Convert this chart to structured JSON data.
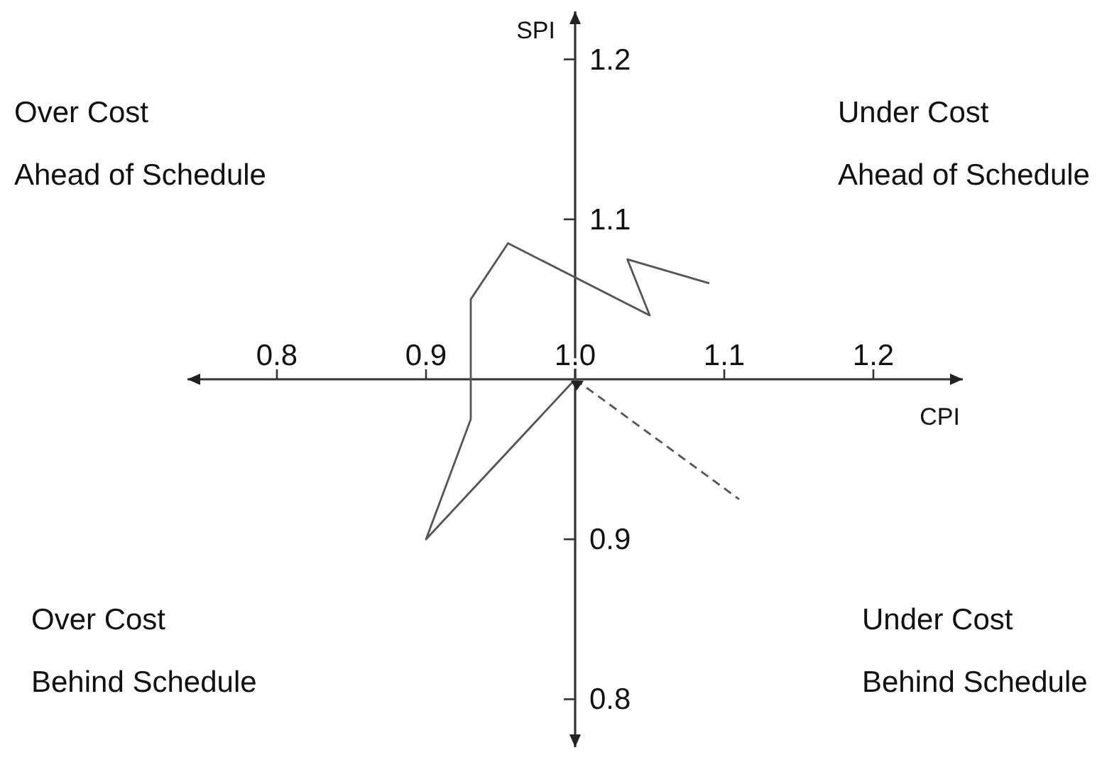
{
  "chart_data": {
    "type": "line",
    "xlabel": "CPI",
    "ylabel": "SPI",
    "annotations": [
      "Over Cost\nAhead of Schedule",
      "Under Cost\nAhead of Schedule",
      "Over Cost\nBehind Schedule",
      "Under Cost\nBehind Schedule"
    ],
    "series": [
      {
        "color": "#555555",
        "x": [
          1.09,
          1.035,
          1.05,
          0.955,
          0.93,
          0.93,
          0.9,
          1.0
        ],
        "values": [
          1.06,
          1.075,
          1.04,
          1.085,
          1.05,
          0.975,
          0.9,
          1.0
        ]
      },
      {
        "color": "#555555",
        "line_style": "dashed",
        "x": [
          1.0,
          1.11
        ],
        "values": [
          1.0,
          0.925
        ]
      }
    ],
    "xlim": [
      0.74,
      1.26
    ],
    "xticks": [
      0.8,
      0.9,
      {
        "value": 1,
        "label": "1.0"
      },
      1.1,
      1.2
    ],
    "ylim": [
      0.77,
      1.23
    ],
    "yticks": [
      0.8,
      0.9,
      1.1,
      1.2
    ]
  }
}
